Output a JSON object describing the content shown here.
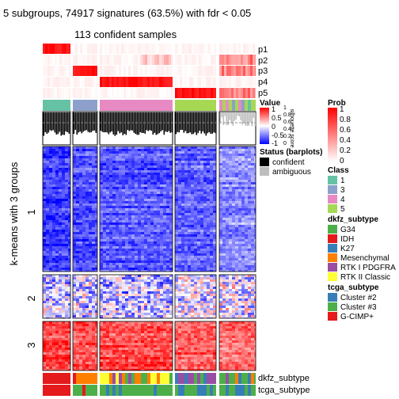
{
  "chart_data": {
    "type": "heatmap",
    "title": "5 subgroups, 74917 signatures (63.5%) with fdr < 0.05",
    "subtitle": "113 confident samples",
    "row_axis_label": "k-means with 3 groups",
    "row_groups": [
      "1",
      "2",
      "3"
    ],
    "column_slices": 5,
    "top_annotations": [
      "p1",
      "p2",
      "p3",
      "p4",
      "p5"
    ],
    "bottom_annotations": [
      "dkfz_subtype",
      "tcga_subtype"
    ],
    "silhouette_label": "silhouette score",
    "silhouette_ticks": [
      "1",
      "0.8",
      "0.6",
      "0.4",
      "0.2",
      "0"
    ],
    "dominant_class_per_slice": [
      "1",
      "3",
      "4",
      "5",
      "5"
    ],
    "legends": {
      "value": {
        "title": "Value",
        "ticks": [
          "1",
          "0.5",
          "0",
          "-0.5",
          "-1"
        ],
        "colors": [
          "#ff0000",
          "#ffffff",
          "#0000ff"
        ]
      },
      "prob": {
        "title": "Prob",
        "ticks": [
          "1",
          "0.8",
          "0.6",
          "0.4",
          "0.2",
          "0"
        ],
        "colors": [
          "#ff0000",
          "#ffffff"
        ]
      },
      "status": {
        "title": "Status (barplots)",
        "items": [
          {
            "label": "confident",
            "color": "#000000"
          },
          {
            "label": "ambiguous",
            "color": "#bebebe"
          }
        ]
      },
      "class": {
        "title": "Class",
        "items": [
          {
            "label": "1",
            "color": "#66c2a5"
          },
          {
            "label": "3",
            "color": "#8da0cb"
          },
          {
            "label": "4",
            "color": "#e78ac3"
          },
          {
            "label": "5",
            "color": "#a6d854"
          }
        ]
      },
      "dkfz_subtype": {
        "title": "dkfz_subtype",
        "items": [
          {
            "label": "G34",
            "color": "#4daf4a"
          },
          {
            "label": "IDH",
            "color": "#e41a1c"
          },
          {
            "label": "K27",
            "color": "#377eb8"
          },
          {
            "label": "Mesenchymal",
            "color": "#ff7f00"
          },
          {
            "label": "RTK I PDGFRA",
            "color": "#984ea3"
          },
          {
            "label": "RTK II Classic",
            "color": "#ffff33"
          }
        ]
      },
      "tcga_subtype": {
        "title": "tcga_subtype",
        "items": [
          {
            "label": "Cluster #2",
            "color": "#377eb8"
          },
          {
            "label": "Cluster #3",
            "color": "#4daf4a"
          },
          {
            "label": "G-CIMP+",
            "color": "#e41a1c"
          }
        ]
      }
    }
  }
}
